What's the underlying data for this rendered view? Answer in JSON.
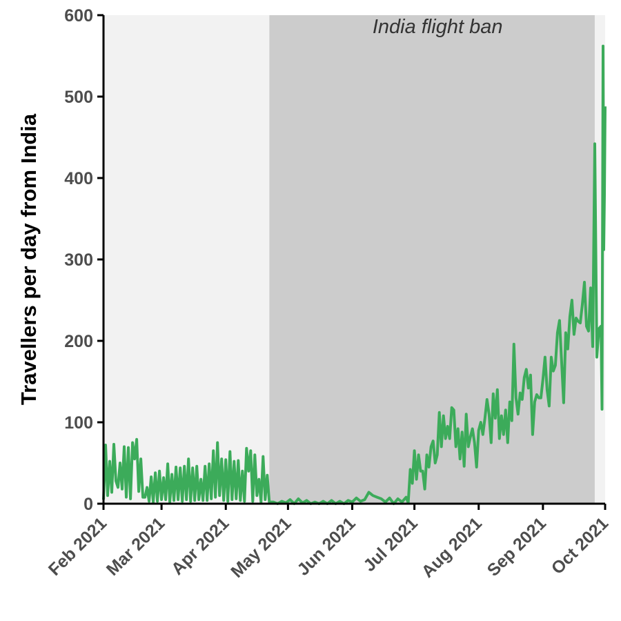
{
  "chart_data": {
    "type": "line",
    "title": "",
    "xlabel": "",
    "ylabel": "Travellers per day from India",
    "xlim": [
      "2021-02-01",
      "2021-10-01"
    ],
    "ylim": [
      0,
      600
    ],
    "yticks": [
      0,
      100,
      200,
      300,
      400,
      500,
      600
    ],
    "xticks": [
      {
        "date": "2021-02-01",
        "label": "Feb 2021"
      },
      {
        "date": "2021-03-01",
        "label": "Mar 2021"
      },
      {
        "date": "2021-04-01",
        "label": "Apr 2021"
      },
      {
        "date": "2021-05-01",
        "label": "May 2021"
      },
      {
        "date": "2021-06-01",
        "label": "Jun 2021"
      },
      {
        "date": "2021-07-01",
        "label": "Jul 2021"
      },
      {
        "date": "2021-08-01",
        "label": "Aug 2021"
      },
      {
        "date": "2021-09-01",
        "label": "Sep 2021"
      },
      {
        "date": "2021-10-01",
        "label": "Oct 2021"
      }
    ],
    "grid": false,
    "shaded_regions": [
      {
        "start": "2021-02-01",
        "end": "2021-04-22",
        "color": "#f2f2f2",
        "label": ""
      },
      {
        "start": "2021-04-22",
        "end": "2021-09-26",
        "color": "#cccccc",
        "label": "India flight ban"
      },
      {
        "start": "2021-09-26",
        "end": "2021-10-01",
        "color": "#f2f2f2",
        "label": ""
      }
    ],
    "series": [
      {
        "color": "#3cab5a",
        "points": [
          [
            "2021-02-01",
            5
          ],
          [
            "2021-02-02",
            72
          ],
          [
            "2021-02-03",
            10
          ],
          [
            "2021-02-04",
            52
          ],
          [
            "2021-02-05",
            14
          ],
          [
            "2021-02-06",
            73
          ],
          [
            "2021-02-07",
            28
          ],
          [
            "2021-02-08",
            20
          ],
          [
            "2021-02-09",
            50
          ],
          [
            "2021-02-10",
            18
          ],
          [
            "2021-02-11",
            70
          ],
          [
            "2021-02-12",
            8
          ],
          [
            "2021-02-13",
            69
          ],
          [
            "2021-02-14",
            6
          ],
          [
            "2021-02-15",
            75
          ],
          [
            "2021-02-16",
            55
          ],
          [
            "2021-02-17",
            79
          ],
          [
            "2021-02-18",
            15
          ],
          [
            "2021-02-19",
            55
          ],
          [
            "2021-02-20",
            8
          ],
          [
            "2021-02-21",
            8
          ],
          [
            "2021-02-22",
            20
          ],
          [
            "2021-02-23",
            3
          ],
          [
            "2021-02-24",
            33
          ],
          [
            "2021-02-25",
            2
          ],
          [
            "2021-02-26",
            38
          ],
          [
            "2021-02-27",
            3
          ],
          [
            "2021-02-28",
            40
          ],
          [
            "2021-03-01",
            5
          ],
          [
            "2021-03-02",
            32
          ],
          [
            "2021-03-03",
            5
          ],
          [
            "2021-03-04",
            49
          ],
          [
            "2021-03-05",
            2
          ],
          [
            "2021-03-06",
            36
          ],
          [
            "2021-03-07",
            4
          ],
          [
            "2021-03-08",
            45
          ],
          [
            "2021-03-09",
            5
          ],
          [
            "2021-03-10",
            44
          ],
          [
            "2021-03-11",
            3
          ],
          [
            "2021-03-12",
            46
          ],
          [
            "2021-03-13",
            5
          ],
          [
            "2021-03-14",
            55
          ],
          [
            "2021-03-15",
            3
          ],
          [
            "2021-03-16",
            44
          ],
          [
            "2021-03-17",
            4
          ],
          [
            "2021-03-18",
            46
          ],
          [
            "2021-03-19",
            5
          ],
          [
            "2021-03-20",
            30
          ],
          [
            "2021-03-21",
            4
          ],
          [
            "2021-03-22",
            46
          ],
          [
            "2021-03-23",
            4
          ],
          [
            "2021-03-24",
            49
          ],
          [
            "2021-03-25",
            6
          ],
          [
            "2021-03-26",
            65
          ],
          [
            "2021-03-27",
            8
          ],
          [
            "2021-03-28",
            75
          ],
          [
            "2021-03-29",
            10
          ],
          [
            "2021-03-30",
            55
          ],
          [
            "2021-03-31",
            4
          ],
          [
            "2021-04-01",
            54
          ],
          [
            "2021-04-02",
            3
          ],
          [
            "2021-04-03",
            64
          ],
          [
            "2021-04-04",
            5
          ],
          [
            "2021-04-05",
            52
          ],
          [
            "2021-04-06",
            6
          ],
          [
            "2021-04-07",
            53
          ],
          [
            "2021-04-08",
            4
          ],
          [
            "2021-04-09",
            40
          ],
          [
            "2021-04-10",
            3
          ],
          [
            "2021-04-11",
            68
          ],
          [
            "2021-04-12",
            40
          ],
          [
            "2021-04-13",
            65
          ],
          [
            "2021-04-14",
            3
          ],
          [
            "2021-04-15",
            60
          ],
          [
            "2021-04-16",
            10
          ],
          [
            "2021-04-17",
            30
          ],
          [
            "2021-04-18",
            2
          ],
          [
            "2021-04-19",
            58
          ],
          [
            "2021-04-20",
            5
          ],
          [
            "2021-04-21",
            35
          ],
          [
            "2021-04-22",
            2
          ],
          [
            "2021-04-24",
            2
          ],
          [
            "2021-04-26",
            0
          ],
          [
            "2021-04-28",
            3
          ],
          [
            "2021-04-30",
            1
          ],
          [
            "2021-05-02",
            5
          ],
          [
            "2021-05-04",
            0
          ],
          [
            "2021-05-06",
            6
          ],
          [
            "2021-05-08",
            1
          ],
          [
            "2021-05-10",
            4
          ],
          [
            "2021-05-12",
            0
          ],
          [
            "2021-05-14",
            2
          ],
          [
            "2021-05-16",
            0
          ],
          [
            "2021-05-18",
            3
          ],
          [
            "2021-05-20",
            0
          ],
          [
            "2021-05-22",
            4
          ],
          [
            "2021-05-24",
            0
          ],
          [
            "2021-05-26",
            3
          ],
          [
            "2021-05-28",
            0
          ],
          [
            "2021-05-30",
            4
          ],
          [
            "2021-06-01",
            2
          ],
          [
            "2021-06-03",
            7
          ],
          [
            "2021-06-05",
            3
          ],
          [
            "2021-06-07",
            5
          ],
          [
            "2021-06-09",
            14
          ],
          [
            "2021-06-11",
            10
          ],
          [
            "2021-06-13",
            8
          ],
          [
            "2021-06-15",
            6
          ],
          [
            "2021-06-17",
            2
          ],
          [
            "2021-06-19",
            7
          ],
          [
            "2021-06-21",
            0
          ],
          [
            "2021-06-23",
            6
          ],
          [
            "2021-06-25",
            2
          ],
          [
            "2021-06-27",
            8
          ],
          [
            "2021-06-28",
            1
          ],
          [
            "2021-06-29",
            42
          ],
          [
            "2021-06-30",
            25
          ],
          [
            "2021-07-01",
            65
          ],
          [
            "2021-07-02",
            30
          ],
          [
            "2021-07-03",
            60
          ],
          [
            "2021-07-04",
            40
          ],
          [
            "2021-07-05",
            40
          ],
          [
            "2021-07-06",
            18
          ],
          [
            "2021-07-07",
            60
          ],
          [
            "2021-07-08",
            45
          ],
          [
            "2021-07-09",
            70
          ],
          [
            "2021-07-10",
            77
          ],
          [
            "2021-07-11",
            50
          ],
          [
            "2021-07-12",
            60
          ],
          [
            "2021-07-13",
            112
          ],
          [
            "2021-07-14",
            70
          ],
          [
            "2021-07-15",
            108
          ],
          [
            "2021-07-16",
            80
          ],
          [
            "2021-07-17",
            95
          ],
          [
            "2021-07-18",
            80
          ],
          [
            "2021-07-19",
            118
          ],
          [
            "2021-07-20",
            115
          ],
          [
            "2021-07-21",
            70
          ],
          [
            "2021-07-22",
            92
          ],
          [
            "2021-07-23",
            55
          ],
          [
            "2021-07-24",
            88
          ],
          [
            "2021-07-25",
            46
          ],
          [
            "2021-07-26",
            110
          ],
          [
            "2021-07-27",
            70
          ],
          [
            "2021-07-28",
            82
          ],
          [
            "2021-07-29",
            92
          ],
          [
            "2021-07-30",
            75
          ],
          [
            "2021-07-31",
            45
          ],
          [
            "2021-08-01",
            90
          ],
          [
            "2021-08-02",
            100
          ],
          [
            "2021-08-03",
            85
          ],
          [
            "2021-08-04",
            105
          ],
          [
            "2021-08-05",
            128
          ],
          [
            "2021-08-06",
            110
          ],
          [
            "2021-08-07",
            75
          ],
          [
            "2021-08-08",
            135
          ],
          [
            "2021-08-09",
            105
          ],
          [
            "2021-08-10",
            140
          ],
          [
            "2021-08-11",
            80
          ],
          [
            "2021-08-12",
            108
          ],
          [
            "2021-08-13",
            85
          ],
          [
            "2021-08-14",
            115
          ],
          [
            "2021-08-15",
            75
          ],
          [
            "2021-08-16",
            125
          ],
          [
            "2021-08-17",
            102
          ],
          [
            "2021-08-18",
            196
          ],
          [
            "2021-08-19",
            130
          ],
          [
            "2021-08-20",
            110
          ],
          [
            "2021-08-21",
            136
          ],
          [
            "2021-08-22",
            128
          ],
          [
            "2021-08-23",
            155
          ],
          [
            "2021-08-24",
            165
          ],
          [
            "2021-08-25",
            142
          ],
          [
            "2021-08-26",
            158
          ],
          [
            "2021-08-27",
            85
          ],
          [
            "2021-08-28",
            125
          ],
          [
            "2021-08-29",
            134
          ],
          [
            "2021-08-30",
            130
          ],
          [
            "2021-08-31",
            130
          ],
          [
            "2021-09-01",
            153
          ],
          [
            "2021-09-02",
            180
          ],
          [
            "2021-09-03",
            140
          ],
          [
            "2021-09-04",
            120
          ],
          [
            "2021-09-05",
            180
          ],
          [
            "2021-09-06",
            163
          ],
          [
            "2021-09-07",
            170
          ],
          [
            "2021-09-08",
            210
          ],
          [
            "2021-09-09",
            225
          ],
          [
            "2021-09-10",
            175
          ],
          [
            "2021-09-11",
            124
          ],
          [
            "2021-09-12",
            210
          ],
          [
            "2021-09-13",
            190
          ],
          [
            "2021-09-14",
            230
          ],
          [
            "2021-09-15",
            250
          ],
          [
            "2021-09-16",
            208
          ],
          [
            "2021-09-17",
            228
          ],
          [
            "2021-09-18",
            224
          ],
          [
            "2021-09-19",
            222
          ],
          [
            "2021-09-20",
            245
          ],
          [
            "2021-09-21",
            272
          ],
          [
            "2021-09-22",
            218
          ],
          [
            "2021-09-23",
            212
          ],
          [
            "2021-09-24",
            265
          ],
          [
            "2021-09-25",
            193
          ],
          [
            "2021-09-26",
            442
          ],
          [
            "2021-09-27",
            180
          ],
          [
            "2021-09-28",
            215
          ],
          [
            "2021-09-29",
            218
          ],
          [
            "2021-09-29T12:00",
            116
          ],
          [
            "2021-09-30",
            562
          ],
          [
            "2021-09-30T08:00",
            312
          ],
          [
            "2021-09-30T16:00",
            380
          ],
          [
            "2021-10-01",
            488
          ]
        ]
      }
    ]
  }
}
